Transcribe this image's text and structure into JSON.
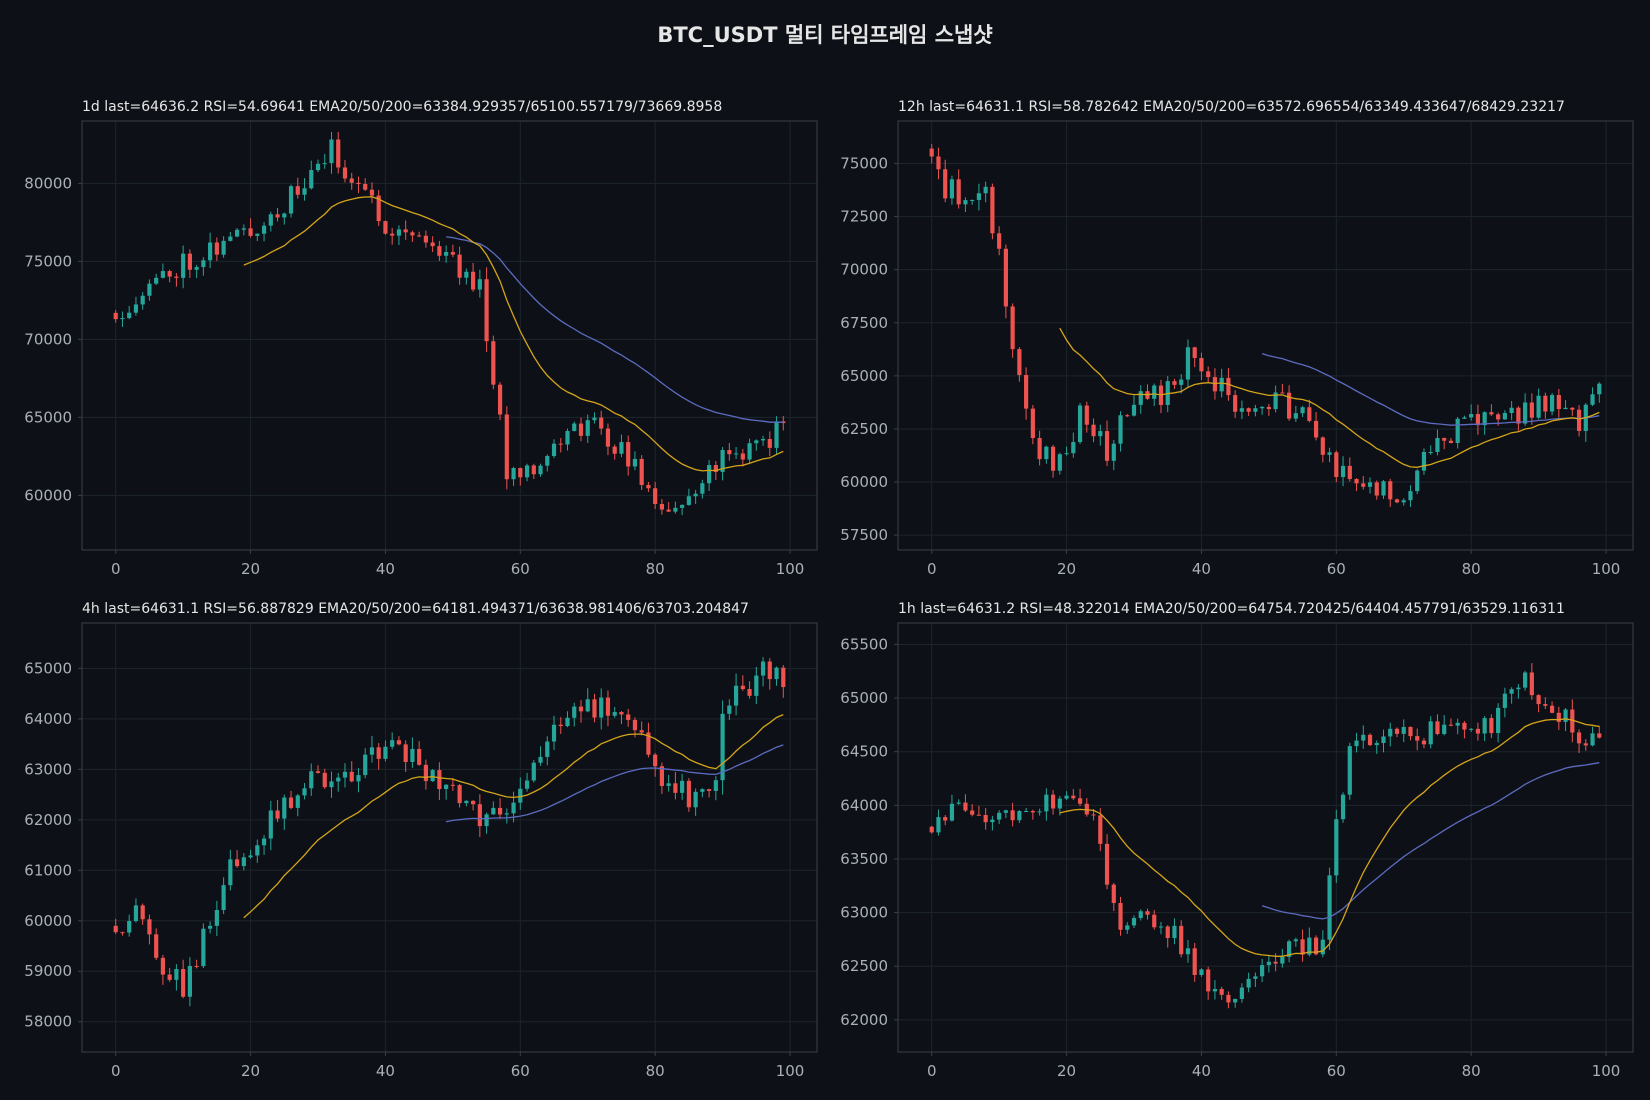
{
  "figure": {
    "title": "BTC_USDT  멀티 타임프레임 스냅샷",
    "colors": {
      "background": "#0d1117",
      "axes_face": "#0d1117",
      "spine": "#3a3f47",
      "grid": "#1e242c",
      "tick_text": "#aab0b8",
      "title_text": "#e6e6e6",
      "up": "#26a69a",
      "down": "#ef5350",
      "ema20": "#d4a419",
      "ema50": "#5c6bc0"
    }
  },
  "chart_data": [
    {
      "type": "candlestick",
      "title": "1d  last=64636.2  RSI=54.69641  EMA20/50/200=63384.929357/65100.557179/73669.8958",
      "xlim": [
        -5,
        104
      ],
      "ylim": [
        56500,
        84000
      ],
      "xticks": [
        0,
        20,
        40,
        60,
        80,
        100
      ],
      "yticks": [
        60000,
        65000,
        70000,
        75000,
        80000
      ],
      "start_price": 71700,
      "last_price": 64636,
      "seed": 11,
      "vol": 0.018,
      "wick": 0.45,
      "anchors": [
        [
          0,
          71700
        ],
        [
          10,
          75000
        ],
        [
          20,
          77000
        ],
        [
          26,
          79000
        ],
        [
          32,
          82000
        ],
        [
          36,
          80000
        ],
        [
          40,
          77500
        ],
        [
          46,
          76500
        ],
        [
          50,
          75000
        ],
        [
          54,
          73500
        ],
        [
          58,
          61500
        ],
        [
          62,
          62000
        ],
        [
          66,
          63500
        ],
        [
          70,
          64800
        ],
        [
          76,
          62500
        ],
        [
          80,
          59500
        ],
        [
          84,
          59000
        ],
        [
          88,
          61800
        ],
        [
          92,
          62800
        ],
        [
          96,
          63200
        ],
        [
          99,
          64636
        ]
      ],
      "ema20_start": 19,
      "ema50_start": 49
    },
    {
      "type": "candlestick",
      "title": "12h  last=64631.1  RSI=58.782642  EMA20/50/200=63572.696554/63349.433647/68429.23217",
      "xlim": [
        -5,
        104
      ],
      "ylim": [
        56800,
        77000
      ],
      "xticks": [
        0,
        20,
        40,
        60,
        80,
        100
      ],
      "yticks": [
        57500,
        60000,
        62500,
        65000,
        67500,
        70000,
        72500,
        75000
      ],
      "start_price": 75700,
      "last_price": 64631,
      "seed": 23,
      "vol": 0.016,
      "wick": 0.45,
      "anchors": [
        [
          0,
          75700
        ],
        [
          2,
          73700
        ],
        [
          8,
          73600
        ],
        [
          10,
          70500
        ],
        [
          13,
          64500
        ],
        [
          16,
          61500
        ],
        [
          18,
          60800
        ],
        [
          22,
          63000
        ],
        [
          26,
          61500
        ],
        [
          30,
          63600
        ],
        [
          34,
          64200
        ],
        [
          38,
          65800
        ],
        [
          42,
          64800
        ],
        [
          46,
          63000
        ],
        [
          50,
          64000
        ],
        [
          54,
          63400
        ],
        [
          58,
          61500
        ],
        [
          62,
          59800
        ],
        [
          66,
          59700
        ],
        [
          70,
          59500
        ],
        [
          74,
          61800
        ],
        [
          80,
          62700
        ],
        [
          86,
          63200
        ],
        [
          92,
          63800
        ],
        [
          96,
          62800
        ],
        [
          99,
          64631
        ]
      ],
      "ema20_start": 19,
      "ema50_start": 49
    },
    {
      "type": "candlestick",
      "title": "4h  last=64631.1  RSI=56.887829  EMA20/50/200=64181.494371/63638.981406/63703.204847",
      "xlim": [
        -5,
        104
      ],
      "ylim": [
        57400,
        65900
      ],
      "xticks": [
        0,
        20,
        40,
        60,
        80,
        100
      ],
      "yticks": [
        58000,
        59000,
        60000,
        61000,
        62000,
        63000,
        64000,
        65000
      ],
      "start_price": 59900,
      "last_price": 64631,
      "seed": 37,
      "vol": 0.007,
      "wick": 0.5,
      "anchors": [
        [
          0,
          59900
        ],
        [
          3,
          60200
        ],
        [
          7,
          59000
        ],
        [
          10,
          58700
        ],
        [
          12,
          59200
        ],
        [
          16,
          60800
        ],
        [
          20,
          61500
        ],
        [
          26,
          62400
        ],
        [
          30,
          62900
        ],
        [
          34,
          62800
        ],
        [
          38,
          63200
        ],
        [
          42,
          63500
        ],
        [
          46,
          63000
        ],
        [
          50,
          62500
        ],
        [
          54,
          61900
        ],
        [
          58,
          62300
        ],
        [
          62,
          63200
        ],
        [
          66,
          64000
        ],
        [
          72,
          64200
        ],
        [
          76,
          64100
        ],
        [
          80,
          63000
        ],
        [
          84,
          62600
        ],
        [
          86,
          62400
        ],
        [
          89,
          62800
        ],
        [
          90,
          64300
        ],
        [
          94,
          64700
        ],
        [
          97,
          65000
        ],
        [
          99,
          64631
        ]
      ],
      "ema20_start": 19,
      "ema50_start": 49
    },
    {
      "type": "candlestick",
      "title": "1h  last=64631.2  RSI=48.322014  EMA20/50/200=64754.720425/64404.457791/63529.116311",
      "xlim": [
        -5,
        104
      ],
      "ylim": [
        61700,
        65700
      ],
      "xticks": [
        0,
        20,
        40,
        60,
        80,
        100
      ],
      "yticks": [
        62000,
        62500,
        63000,
        63500,
        64000,
        64500,
        65000,
        65500
      ],
      "start_price": 63800,
      "last_price": 64631,
      "seed": 53,
      "vol": 0.0028,
      "wick": 0.5,
      "anchors": [
        [
          0,
          63800
        ],
        [
          4,
          64050
        ],
        [
          8,
          63900
        ],
        [
          14,
          64000
        ],
        [
          20,
          64100
        ],
        [
          24,
          63800
        ],
        [
          26,
          63300
        ],
        [
          28,
          62800
        ],
        [
          32,
          63000
        ],
        [
          36,
          62800
        ],
        [
          40,
          62400
        ],
        [
          44,
          62100
        ],
        [
          47,
          62300
        ],
        [
          50,
          62600
        ],
        [
          54,
          62650
        ],
        [
          58,
          62700
        ],
        [
          60,
          63900
        ],
        [
          62,
          64500
        ],
        [
          66,
          64600
        ],
        [
          70,
          64650
        ],
        [
          76,
          64700
        ],
        [
          80,
          64700
        ],
        [
          84,
          64800
        ],
        [
          86,
          65100
        ],
        [
          88,
          65300
        ],
        [
          90,
          64900
        ],
        [
          94,
          64800
        ],
        [
          97,
          64600
        ],
        [
          99,
          64631
        ]
      ],
      "ema20_start": 19,
      "ema50_start": 49
    }
  ]
}
